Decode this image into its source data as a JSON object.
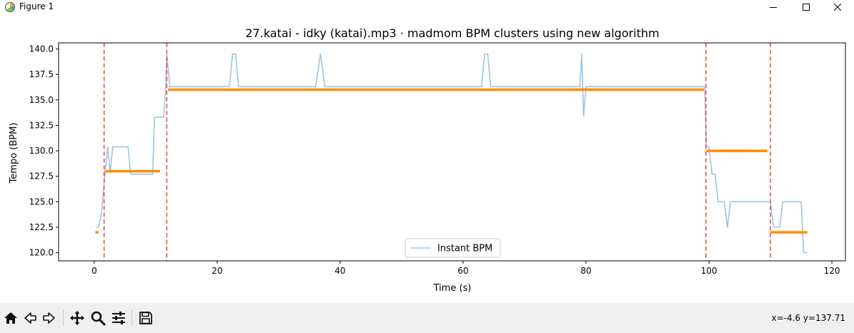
{
  "window": {
    "title": "Figure 1",
    "icon": "matplotlib-icon",
    "controls": [
      "minimize-icon",
      "maximize-icon",
      "close-icon"
    ]
  },
  "toolbar": {
    "buttons": [
      "home-icon",
      "back-icon",
      "forward-icon",
      "pan-icon",
      "zoom-icon",
      "configure-subplots-icon",
      "save-icon"
    ],
    "coords": "x=-4.6 y=137.71"
  },
  "colors": {
    "instant": "#9ec5de",
    "clusters": "#ff8c00",
    "boundaries": "#e8474d"
  },
  "chart_data": {
    "type": "line",
    "title": "27.katai - idky (katai).mp3 · madmom BPM clusters using new algorithm",
    "xlabel": "Time (s)",
    "ylabel": "Tempo (BPM)",
    "xlim": [
      -5.8,
      122.2
    ],
    "ylim": [
      119.2,
      140.6
    ],
    "xticks": [
      0,
      20,
      40,
      60,
      80,
      100,
      120
    ],
    "yticks": [
      120.0,
      122.5,
      125.0,
      127.5,
      130.0,
      132.5,
      135.0,
      137.5,
      140.0
    ],
    "grid": false,
    "legend": {
      "placement": "lower center",
      "entries": [
        "Instant BPM"
      ]
    },
    "series": [
      {
        "name": "Instant BPM",
        "style": "line",
        "x": [
          0.3,
          0.7,
          1.2,
          1.7,
          2.2,
          2.6,
          3.0,
          3.5,
          4.0,
          4.5,
          5.0,
          5.5,
          5.9,
          6.0,
          7.0,
          8.0,
          9.0,
          9.5,
          9.8,
          10.3,
          10.8,
          11.3,
          11.6,
          11.8,
          12.3,
          13.0,
          14.0,
          16.0,
          18.0,
          20.0,
          22.0,
          22.5,
          23.0,
          23.5,
          30.0,
          36.0,
          36.8,
          37.5,
          45.0,
          55.0,
          63.0,
          63.5,
          64.0,
          64.5,
          70.0,
          75.0,
          79.0,
          79.3,
          79.6,
          80.0,
          81.0,
          90.0,
          99.0,
          99.3,
          99.6,
          100.0,
          100.5,
          101.0,
          101.5,
          102.0,
          102.5,
          103.0,
          103.5,
          104.0,
          105.0,
          106.0,
          107.0,
          108.0,
          109.0,
          110.0,
          110.5,
          111.0,
          111.5,
          112.0,
          113.0,
          114.0,
          115.0,
          115.4,
          116.0
        ],
        "y": [
          122.5,
          122.5,
          124.0,
          127.5,
          130.4,
          127.8,
          130.4,
          130.4,
          130.4,
          130.4,
          130.4,
          130.4,
          127.8,
          127.7,
          127.7,
          127.7,
          127.7,
          127.7,
          133.3,
          133.3,
          133.3,
          133.3,
          136.0,
          139.5,
          136.3,
          136.3,
          136.3,
          136.3,
          136.3,
          136.3,
          136.3,
          139.5,
          139.5,
          136.3,
          136.3,
          136.3,
          139.5,
          136.3,
          136.3,
          136.3,
          136.3,
          139.5,
          139.5,
          136.3,
          136.3,
          136.3,
          136.3,
          139.5,
          133.4,
          136.3,
          136.3,
          136.3,
          136.3,
          136.3,
          130.4,
          130.4,
          127.7,
          127.7,
          125.0,
          125.0,
          125.0,
          122.5,
          125.0,
          125.0,
          125.0,
          125.0,
          125.0,
          125.0,
          125.0,
          125.0,
          122.5,
          122.5,
          122.5,
          125.0,
          125.0,
          125.0,
          125.0,
          120.0,
          120.0
        ]
      },
      {
        "name": "",
        "style": "segments",
        "segments": [
          {
            "x0": 0.2,
            "x1": 0.7,
            "y": 122.0
          },
          {
            "x0": 1.7,
            "x1": 10.7,
            "y": 128.0
          },
          {
            "x0": 12.0,
            "x1": 99.2,
            "y": 136.0
          },
          {
            "x0": 99.6,
            "x1": 109.5,
            "y": 130.0
          },
          {
            "x0": 110.0,
            "x1": 116.0,
            "y": 122.0
          }
        ]
      },
      {
        "name": "",
        "style": "vlines",
        "x": [
          1.6,
          11.8,
          99.5,
          110.0
        ]
      }
    ]
  }
}
